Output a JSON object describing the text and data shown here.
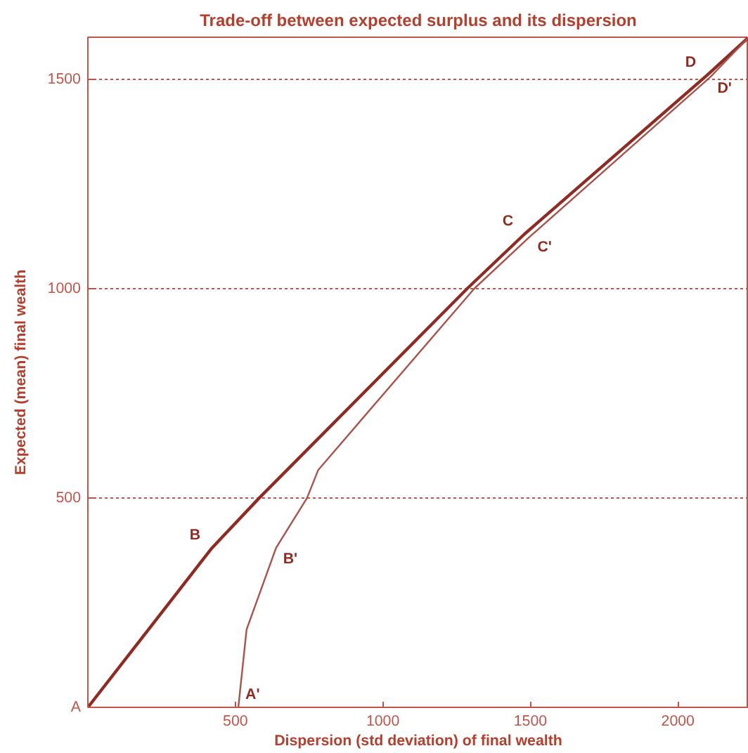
{
  "chart_data": {
    "type": "line",
    "title": "Trade-off between expected surplus and its dispersion",
    "xlabel": "Dispersion (std deviation) of final wealth",
    "ylabel": "Expected (mean) final wealth",
    "series": [
      {
        "color": "#8e2b22",
        "x": [
          0,
          420,
          581,
          1286,
          1480,
          2100,
          2240
        ],
        "values": [
          0,
          380,
          500,
          1000,
          1130,
          1510,
          1600
        ]
      },
      {
        "color": "#a8524a",
        "x": [
          510,
          538,
          638,
          743,
          781,
          1310,
          1500,
          2110,
          2240
        ],
        "values": [
          0,
          186,
          381,
          500,
          567,
          1000,
          1125,
          1505,
          1600
        ]
      }
    ],
    "xlim": [
      0,
      2240
    ],
    "ylim": [
      0,
      1600
    ],
    "xticks": [
      500,
      1000,
      1500,
      2000
    ],
    "yticks": [
      {
        "value": 0,
        "label": "A"
      },
      500,
      1000,
      1500
    ],
    "grid": "y",
    "line_style": "solid",
    "marker": "none",
    "annotations": [
      {
        "text": "B",
        "x": 420,
        "y": 380
      },
      {
        "text": "C",
        "x": 1480,
        "y": 1130
      },
      {
        "text": "D",
        "x": 2100,
        "y": 1510
      },
      {
        "text": "A'",
        "x": 510,
        "y": 0
      },
      {
        "text": "B'",
        "x": 638,
        "y": 381
      },
      {
        "text": "C'",
        "x": 1500,
        "y": 1125
      },
      {
        "text": "D'",
        "x": 2110,
        "y": 1505
      }
    ]
  }
}
